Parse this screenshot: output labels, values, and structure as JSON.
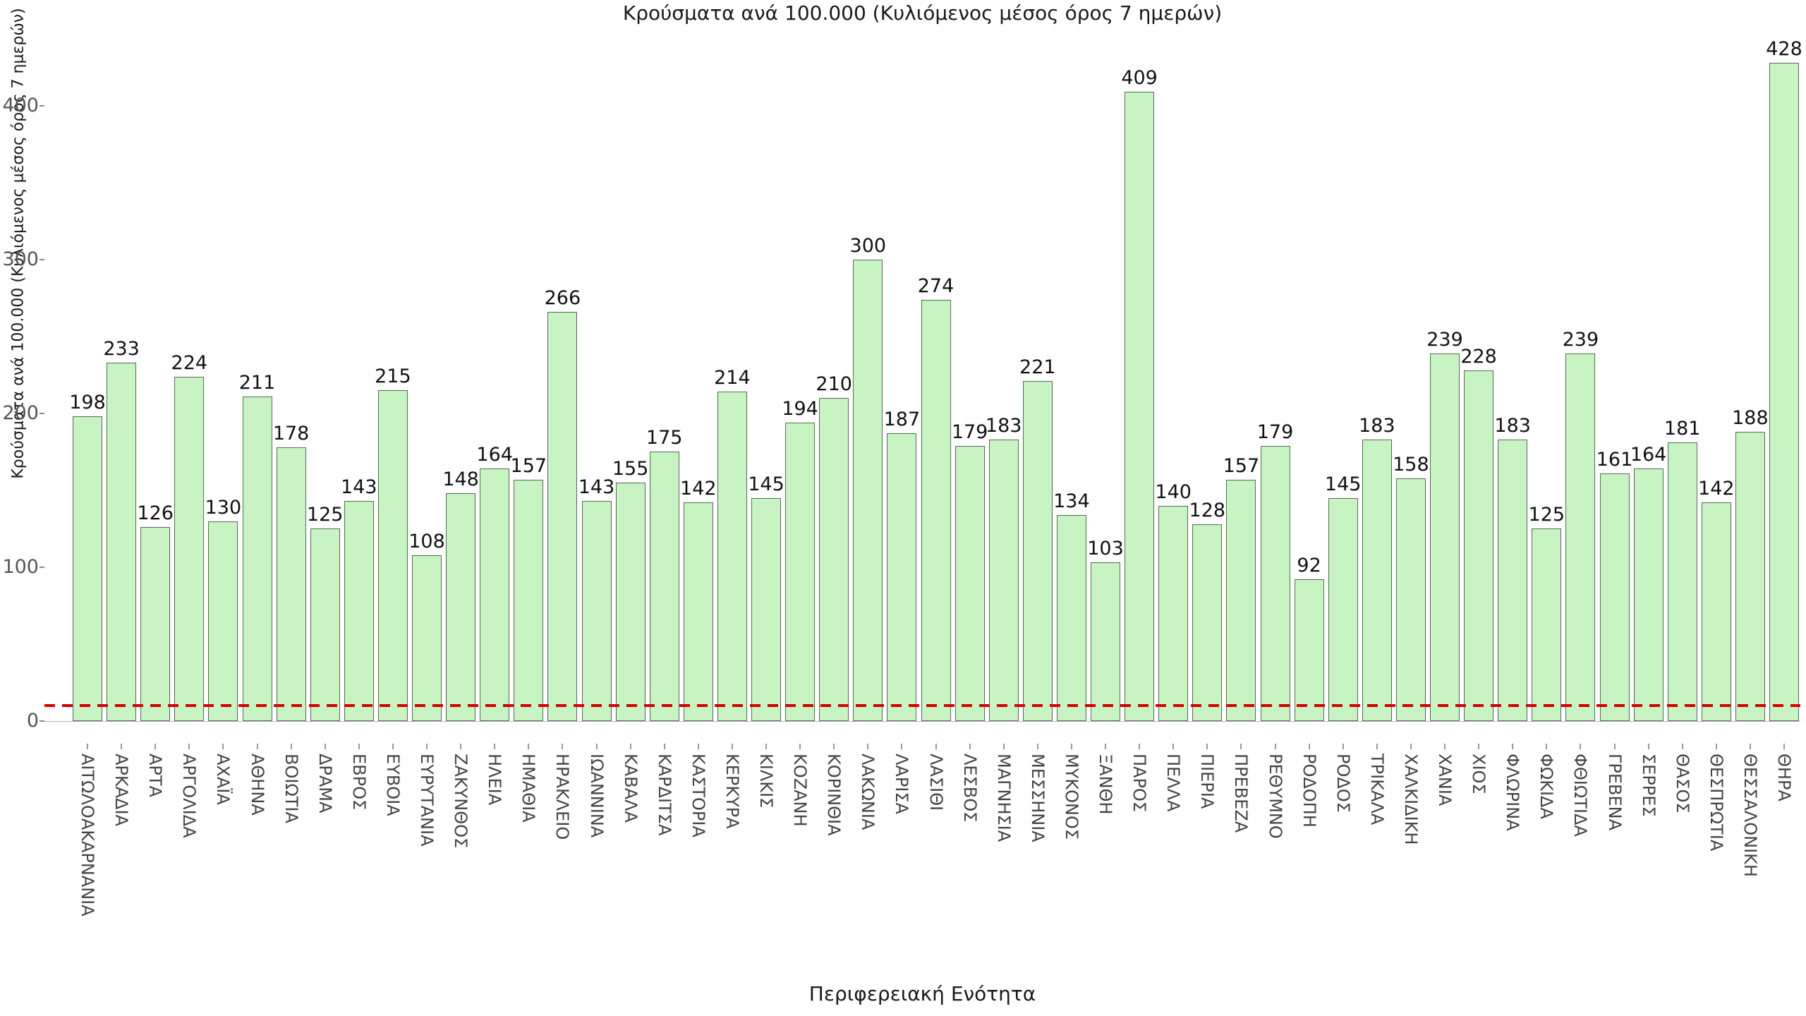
{
  "chart_data": {
    "type": "bar",
    "title": "Κρούσματα ανά 100.000 (Κυλιόμενος μέσος όρος 7 ημερών)",
    "xlabel": "Περιφερειακή Ενότητα",
    "ylabel": "Κρούσματα ανά 100.000 (Κυλιόμενος μέσος όρος 7 ημερών)",
    "ylim": [
      0,
      440
    ],
    "yticks": [
      0,
      100,
      200,
      300,
      400
    ],
    "grid": false,
    "legend": "none",
    "bar_color": "#c8f3c3",
    "bar_edge_color": "#566b56",
    "value_label_color": "#111111",
    "tick_label_color": "#555555",
    "reference_line": {
      "value": 10,
      "color": "#d40000",
      "style": "dashed"
    },
    "categories": [
      "ΑΙΤΩΛΟΑΚΑΡΝΑΝΙΑ",
      "ΑΡΚΑΔΙΑ",
      "ΑΡΤΑ",
      "ΑΡΓΟΛΙΔΑ",
      "ΑΧΑΪΑ",
      "ΑΘΗΝΑ",
      "ΒΟΙΩΤΙΑ",
      "ΔΡΑΜΑ",
      "ΕΒΡΟΣ",
      "ΕΥΒΟΙΑ",
      "ΕΥΡΥΤΑΝΙΑ",
      "ΖΑΚΥΝΘΟΣ",
      "ΗΛΕΙΑ",
      "ΗΜΑΘΙΑ",
      "ΗΡΑΚΛΕΙΟ",
      "ΙΩΑΝΝΙΝΑ",
      "ΚΑΒΑΛΑ",
      "ΚΑΡΔΙΤΣΑ",
      "ΚΑΣΤΟΡΙΑ",
      "ΚΕΡΚΥΡΑ",
      "ΚΙΛΚΙΣ",
      "ΚΟΖΑΝΗ",
      "ΚΟΡΙΝΘΙΑ",
      "ΛΑΚΩΝΙΑ",
      "ΛΑΡΙΣΑ",
      "ΛΑΣΙΘΙ",
      "ΛΕΣΒΟΣ",
      "ΜΑΓΝΗΣΙΑ",
      "ΜΕΣΣΗΝΙΑ",
      "ΜΥΚΟΝΟΣ",
      "ΞΑΝΘΗ",
      "ΠΑΡΟΣ",
      "ΠΕΛΛΑ",
      "ΠΙΕΡΙΑ",
      "ΠΡΕΒΕΖΑ",
      "ΡΕΘΥΜΝΟ",
      "ΡΟΔΟΠΗ",
      "ΡΟΔΟΣ",
      "ΤΡΙΚΑΛΑ",
      "ΧΑΛΚΙΔΙΚΗ",
      "ΧΑΝΙΑ",
      "ΧΙΟΣ",
      "ΦΛΩΡΙΝΑ",
      "ΦΩΚΙΔΑ",
      "ΦΘΙΩΤΙΔΑ",
      "ΓΡΕΒΕΝΑ",
      "ΣΕΡΡΕΣ",
      "ΘΑΣΟΣ",
      "ΘΕΣΠΡΩΤΙΑ",
      "ΘΕΣΣΑΛΟΝΙΚΗ",
      "ΘΗΡΑ"
    ],
    "values": [
      198,
      233,
      126,
      224,
      130,
      211,
      178,
      125,
      143,
      215,
      108,
      148,
      164,
      157,
      266,
      143,
      155,
      175,
      142,
      214,
      145,
      194,
      210,
      300,
      187,
      274,
      179,
      183,
      221,
      134,
      103,
      409,
      140,
      128,
      157,
      179,
      92,
      145,
      183,
      158,
      239,
      228,
      183,
      125,
      239,
      161,
      164,
      181,
      142,
      188,
      428
    ]
  }
}
